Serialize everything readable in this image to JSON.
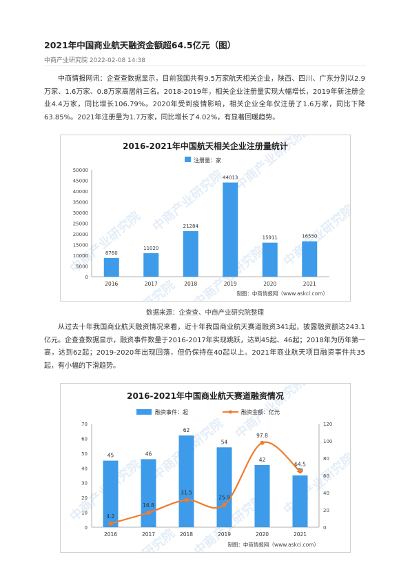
{
  "article": {
    "title": "2021年中国商业航天融资金额超64.5亿元（图）",
    "meta": "中商产业研究院 2022-02-08 14:38",
    "paragraph1": "中商情报网讯：企查查数据显示，目前我国共有9.5万家航天相关企业，陕西、四川、广东分别以2.9万家、1.6万家、0.8万家高居前三名。2018-2019年，相关企业注册量实现大幅增长，2019年新注册企业4.4万家，同比增长106.79%。2020年受到疫情影响，相关企业全年仅注册了1.6万家，同比下降63.85%。2021年注册量为1.7万家，同比增长了4.02%，有显著回暖趋势。",
    "source": "数据来源：企查查、中商产业研究院整理",
    "paragraph2": "从过去十年我国商业航天融资情况来看，近十年我国商业航天赛道融资341起，披露融资额达243.1亿元。企查查数据显示，融资事件数量于2016-2017年实现跳跃，达到45起、46起；2018年为历年第一高，达到62起；2019-2020年出现回落，但仍保持在40起以上。2021年商业航天项目融资事件共35起，有小幅的下滑趋势。"
  },
  "watermark": "中商产业研究院",
  "chart_data": [
    {
      "type": "bar",
      "title": "2016-2021年中国航天相关企业注册量统计",
      "credit": "制图：中商情报网（www.askci.com）",
      "categories": [
        "2016",
        "2017",
        "2018",
        "2019",
        "2020",
        "2021"
      ],
      "series": [
        {
          "name": "注册量：家",
          "values": [
            8760,
            11020,
            21284,
            44013,
            15911,
            16550
          ],
          "color": "#3d9be9"
        }
      ],
      "ylim": [
        0,
        50000
      ],
      "yticks": [
        "0",
        "5000",
        "10000",
        "15000",
        "20000",
        "25000",
        "30000",
        "35000",
        "40000",
        "45000",
        "50000"
      ],
      "legend": "top-center",
      "grid": false
    },
    {
      "type": "bar",
      "title": "2016-2021年中国商业航天赛道融资情况",
      "credit": "制图：中商情报网（www.askci.com）",
      "categories": [
        "2016",
        "2017",
        "2018",
        "2019",
        "2020",
        "2021"
      ],
      "series": [
        {
          "name": "融资事件：起",
          "type": "bar",
          "axis": "left",
          "values": [
            45,
            46,
            62,
            54,
            42,
            35
          ],
          "color": "#3d9be9"
        },
        {
          "name": "融资金额：亿元",
          "type": "line",
          "axis": "right",
          "values": [
            4.2,
            16.8,
            31.5,
            25.9,
            97.8,
            64.5
          ],
          "color": "#f07c2c"
        }
      ],
      "ylim_left": [
        0,
        70
      ],
      "ylim_right": [
        0,
        120
      ],
      "yticks_left": [
        "0",
        "10",
        "20",
        "30",
        "40",
        "50",
        "60",
        "70"
      ],
      "yticks_right": [
        "0",
        "20",
        "40",
        "60",
        "80",
        "100",
        "120"
      ],
      "legend": "top-center",
      "grid": false
    }
  ]
}
